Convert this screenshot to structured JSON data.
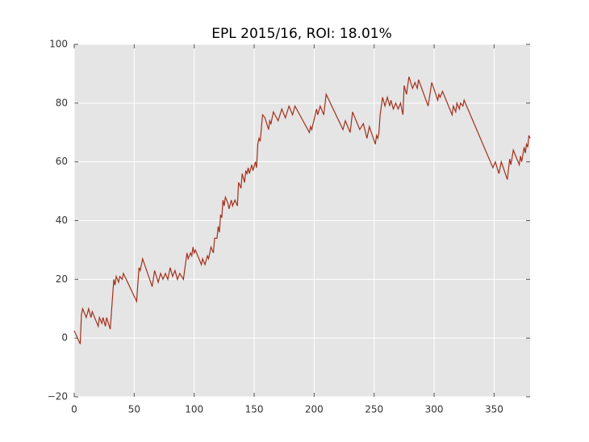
{
  "chart_data": {
    "type": "line",
    "title": "EPL 2015/16, ROI: 18.01%",
    "x": [
      0,
      5,
      6,
      7,
      9,
      10,
      12,
      14,
      15,
      18,
      20,
      21,
      23,
      24,
      26,
      27,
      30,
      33,
      34,
      35,
      37,
      38,
      40,
      41,
      52,
      54,
      55,
      57,
      65,
      67,
      70,
      72,
      74,
      76,
      78,
      80,
      82,
      84,
      86,
      88,
      91,
      94,
      95,
      97,
      98,
      99,
      100,
      101,
      104,
      106,
      107,
      109,
      111,
      112,
      114,
      116,
      117,
      119,
      120,
      121,
      122,
      123,
      124,
      125,
      126,
      128,
      129,
      131,
      132,
      134,
      136,
      137,
      139,
      140,
      142,
      143,
      144,
      145,
      146,
      148,
      149,
      151,
      152,
      153,
      154,
      155,
      157,
      159,
      162,
      163,
      164,
      166,
      170,
      173,
      176,
      179,
      182,
      184,
      196,
      197,
      198,
      202,
      203,
      205,
      208,
      210,
      224,
      226,
      230,
      232,
      238,
      241,
      244,
      246,
      251,
      252,
      253,
      254,
      255,
      257,
      259,
      261,
      263,
      264,
      266,
      268,
      270,
      272,
      274,
      275,
      277,
      279,
      282,
      284,
      286,
      287,
      295,
      298,
      303,
      304,
      305,
      307,
      315,
      316,
      318,
      319,
      321,
      322,
      324,
      325,
      349,
      351,
      354,
      356,
      361,
      363,
      364,
      366,
      371,
      372,
      373,
      375,
      376,
      377,
      378,
      379,
      380
    ],
    "series": [
      {
        "color": "#a3301c",
        "values": [
          2.5,
          -2,
          8,
          10,
          8,
          7,
          10,
          7,
          9,
          6,
          4,
          7,
          5,
          7,
          4,
          7,
          3,
          20,
          18,
          21,
          19,
          21,
          20,
          22,
          12.5,
          24,
          23,
          27,
          17.5,
          23,
          19,
          22,
          20,
          22,
          20,
          24,
          21,
          23,
          20,
          22,
          20,
          29,
          27,
          29,
          28,
          31,
          29,
          30,
          27,
          25,
          27,
          25,
          28,
          27,
          31,
          29,
          34,
          34,
          38,
          36,
          42,
          41,
          47,
          45,
          48,
          46,
          44,
          47,
          45,
          47,
          45,
          53,
          51,
          56,
          53,
          57,
          56,
          58,
          56,
          59,
          57,
          60,
          58,
          66,
          68,
          67,
          76,
          75,
          71,
          74,
          73,
          77,
          74,
          78,
          75,
          79,
          76,
          79,
          70,
          72,
          71,
          78,
          76,
          79,
          76,
          83,
          71,
          74,
          70,
          77,
          71,
          73,
          68,
          72,
          66,
          69,
          68,
          70,
          76,
          82,
          79,
          82,
          79,
          81,
          78,
          80,
          78,
          80,
          76,
          86,
          83,
          89,
          85,
          87,
          85,
          88,
          79,
          87,
          81,
          83,
          82,
          84,
          76,
          79,
          77,
          80,
          78,
          80,
          79,
          81,
          58,
          60,
          56,
          60,
          54,
          61,
          59,
          64,
          59,
          62,
          60,
          65,
          63,
          66,
          65,
          69,
          68
        ]
      }
    ],
    "xlim": [
      0,
      380
    ],
    "xticks": [
      0,
      50,
      100,
      150,
      200,
      250,
      300,
      350
    ],
    "ylim": [
      -20,
      100
    ],
    "yticks": [
      {
        "value": -20,
        "label": "−20"
      },
      0,
      20,
      40,
      60,
      80,
      100
    ],
    "grid": true
  }
}
